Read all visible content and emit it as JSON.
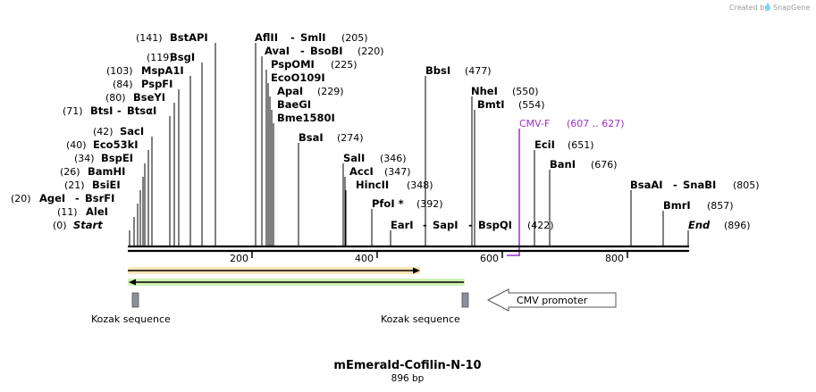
{
  "credit": "Created by",
  "brand": "SnapGene",
  "title": "mEmerald-Cofilin-N-10",
  "length_label": "896 bp",
  "colors": {
    "primer": "#9b30c8",
    "orange_feature": "#e67e00",
    "green_feature": "#2e8b00",
    "backbone": "#000000",
    "kozak_box": "#8a8f99"
  },
  "axis_ticks": [
    "200",
    "400",
    "600",
    "800"
  ],
  "sites": [
    {
      "pos": "(141)",
      "name": "BstAPI"
    },
    {
      "pos": "(119)",
      "name": "BsgI"
    },
    {
      "pos": "(103)",
      "name": "MspA1I"
    },
    {
      "pos": "(84)",
      "name": "PspFI"
    },
    {
      "pos": "(80)",
      "name": "BseYI"
    },
    {
      "pos": "(71)",
      "name": "BtsI",
      "name2": "BtsαI"
    },
    {
      "pos": "(42)",
      "name": "SacI"
    },
    {
      "pos": "(40)",
      "name": "Eco53kI"
    },
    {
      "pos": "(34)",
      "name": "BspEI"
    },
    {
      "pos": "(26)",
      "name": "BamHI"
    },
    {
      "pos": "(21)",
      "name": "BsiEI"
    },
    {
      "pos": "(20)",
      "name": "AgeI",
      "name2": "BsrFI"
    },
    {
      "pos": "(11)",
      "name": "AleI"
    },
    {
      "pos": "(0)",
      "name": "Start"
    },
    {
      "name": "AflII",
      "name2": "SmlI",
      "pos": "(205)"
    },
    {
      "name": "AvaI",
      "name2": "BsoBI",
      "pos": "(220)"
    },
    {
      "name": "PspOMI",
      "pos": "(225)"
    },
    {
      "name": "EcoO109I"
    },
    {
      "name": "ApaI",
      "pos": "(229)"
    },
    {
      "name": "BaeGI"
    },
    {
      "name": "Bme1580I"
    },
    {
      "name": "BsaI",
      "pos": "(274)"
    },
    {
      "name": "SalI",
      "pos": "(346)"
    },
    {
      "name": "AccI",
      "pos": "(347)"
    },
    {
      "name": "HincII",
      "pos": "(348)"
    },
    {
      "name": "PfoI *",
      "pos": "(392)"
    },
    {
      "name": "EarI",
      "name2": "SapI",
      "name3": "BspQI",
      "pos": "(422)"
    },
    {
      "name": "BbsI",
      "pos": "(477)"
    },
    {
      "name": "NheI",
      "pos": "(550)"
    },
    {
      "name": "BmtI",
      "pos": "(554)"
    },
    {
      "name": "EciI",
      "pos": "(651)"
    },
    {
      "name": "BanI",
      "pos": "(676)"
    },
    {
      "name": "BsaAI",
      "name2": "SnaBI",
      "pos": "(805)"
    },
    {
      "name": "BmrI",
      "pos": "(857)"
    },
    {
      "name": "End",
      "pos": "(896)"
    }
  ],
  "primer": {
    "name": "CMV-F",
    "range": "(607 .. 627)"
  },
  "features": {
    "kozak_1": "Kozak sequence",
    "kozak_2": "Kozak sequence",
    "cmv": "CMV promoter"
  }
}
